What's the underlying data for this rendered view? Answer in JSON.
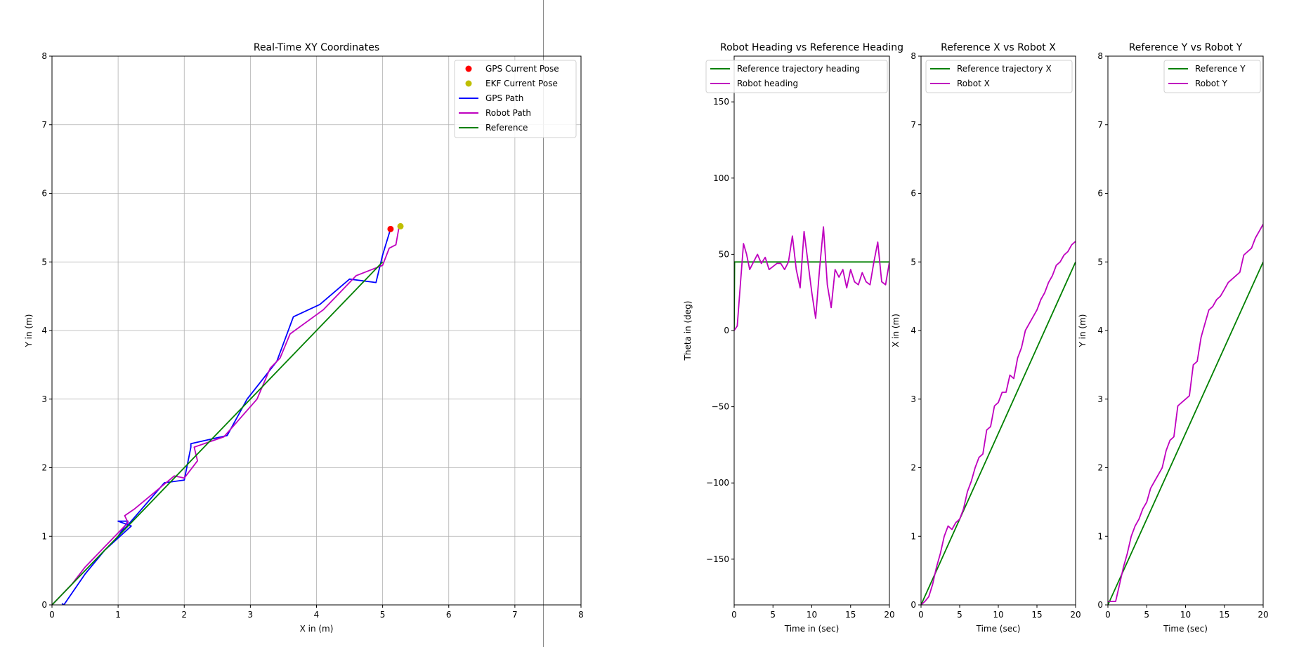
{
  "colors": {
    "gps_point": "#ff0000",
    "ekf_point": "#bfbf00",
    "gps_path": "#0000ff",
    "robot_path": "#bf00bf",
    "reference": "#008000"
  },
  "chart_data": [
    {
      "type": "line",
      "title": "Real-Time XY Coordinates",
      "xlabel": "X in (m)",
      "ylabel": "Y in (m)",
      "xlim": [
        0,
        8
      ],
      "ylim": [
        0,
        8
      ],
      "xticks": [
        "0",
        "1",
        "2",
        "3",
        "4",
        "5",
        "6",
        "7",
        "8"
      ],
      "yticks": [
        "0",
        "1",
        "2",
        "3",
        "4",
        "5",
        "6",
        "7",
        "8"
      ],
      "grid": true,
      "legend_position": "top-right",
      "points": [
        {
          "name": "GPS Current Pose",
          "x": 5.12,
          "y": 5.48,
          "color": "#ff0000"
        },
        {
          "name": "EKF Current Pose",
          "x": 5.27,
          "y": 5.52,
          "color": "#bfbf00"
        }
      ],
      "series": [
        {
          "name": "GPS Path",
          "color": "#0000ff",
          "x": [
            0.15,
            0.18,
            0.5,
            0.8,
            1.2,
            1.0,
            1.15,
            1.0,
            1.7,
            2.0,
            2.1,
            2.1,
            2.65,
            2.95,
            3.4,
            3.65,
            4.05,
            4.5,
            4.9,
            5.0,
            5.12
          ],
          "y": [
            0.02,
            0.0,
            0.45,
            0.8,
            1.15,
            1.22,
            1.22,
            1.0,
            1.78,
            1.82,
            2.3,
            2.35,
            2.47,
            3.0,
            3.55,
            4.2,
            4.38,
            4.75,
            4.7,
            5.1,
            5.48
          ]
        },
        {
          "name": "Robot Path",
          "color": "#bf00bf",
          "x": [
            0.0,
            0.3,
            0.5,
            0.8,
            1.0,
            1.15,
            1.1,
            1.25,
            1.5,
            1.85,
            2.0,
            2.2,
            2.15,
            2.6,
            3.1,
            3.3,
            3.45,
            3.6,
            4.1,
            4.4,
            4.6,
            5.0,
            5.1,
            5.2,
            5.25
          ],
          "y": [
            0.0,
            0.3,
            0.55,
            0.85,
            1.05,
            1.2,
            1.3,
            1.4,
            1.6,
            1.88,
            1.85,
            2.1,
            2.3,
            2.45,
            3.0,
            3.45,
            3.6,
            3.95,
            4.3,
            4.6,
            4.8,
            4.95,
            5.2,
            5.25,
            5.52
          ]
        },
        {
          "name": "Reference",
          "color": "#008000",
          "x": [
            0,
            5
          ],
          "y": [
            0,
            5
          ]
        }
      ]
    },
    {
      "type": "line",
      "title": "Robot Heading vs Reference Heading",
      "xlabel": "Time in (sec)",
      "ylabel": "Theta in (deg)",
      "xlim": [
        0,
        20
      ],
      "ylim": [
        -180,
        180
      ],
      "xticks": [
        "0",
        "5",
        "10",
        "15",
        "20"
      ],
      "yticks": [
        "−150",
        "−100",
        "−50",
        "0",
        "50",
        "100",
        "150"
      ],
      "ytick_values": [
        -150,
        -100,
        -50,
        0,
        50,
        100,
        150
      ],
      "legend_position": "top-left",
      "series": [
        {
          "name": "Reference trajectory heading",
          "color": "#008000",
          "x": [
            0,
            0.05,
            20
          ],
          "y": [
            0,
            45,
            45
          ]
        },
        {
          "name": "Robot heading",
          "color": "#bf00bf",
          "x": [
            0,
            0.4,
            0.8,
            1.2,
            1.6,
            2.0,
            2.5,
            3.0,
            3.5,
            4.0,
            4.5,
            5.0,
            5.5,
            6.0,
            6.5,
            7.0,
            7.5,
            8.0,
            8.5,
            9.0,
            9.5,
            10.0,
            10.5,
            11.0,
            11.5,
            12.0,
            12.5,
            13.0,
            13.5,
            14.0,
            14.5,
            15.0,
            15.5,
            16.0,
            16.5,
            17.0,
            17.5,
            18.0,
            18.5,
            19.0,
            19.5,
            20.0
          ],
          "y": [
            0,
            3,
            30,
            57,
            50,
            40,
            45,
            50,
            44,
            48,
            40,
            42,
            44,
            44,
            40,
            45,
            62,
            40,
            28,
            65,
            45,
            25,
            8,
            40,
            68,
            30,
            15,
            40,
            35,
            40,
            28,
            40,
            32,
            30,
            38,
            32,
            30,
            45,
            58,
            32,
            30,
            45
          ]
        }
      ]
    },
    {
      "type": "line",
      "title": "Reference X vs Robot X",
      "xlabel": "Time (sec)",
      "ylabel": "X in (m)",
      "xlim": [
        0,
        20
      ],
      "ylim": [
        0,
        8
      ],
      "xticks": [
        "0",
        "5",
        "10",
        "15",
        "20"
      ],
      "yticks": [
        "0",
        "1",
        "2",
        "3",
        "4",
        "5",
        "6",
        "7",
        "8"
      ],
      "legend_position": "top-left",
      "series": [
        {
          "name": "Reference trajectory X",
          "color": "#008000",
          "x": [
            0,
            20
          ],
          "y": [
            0,
            5
          ]
        },
        {
          "name": "Robot X",
          "color": "#bf00bf",
          "x": [
            0,
            0.5,
            1,
            1.5,
            2,
            2.5,
            3,
            3.5,
            4,
            4.5,
            5,
            5.5,
            6,
            6.5,
            7,
            7.5,
            8,
            8.5,
            9,
            9.5,
            10,
            10.5,
            11,
            11.5,
            12,
            12.5,
            13,
            13.5,
            14,
            14.5,
            15,
            15.5,
            16,
            16.5,
            17,
            17.5,
            18,
            18.5,
            19,
            19.5,
            20
          ],
          "y": [
            0,
            0.05,
            0.12,
            0.3,
            0.55,
            0.75,
            1.0,
            1.15,
            1.1,
            1.2,
            1.25,
            1.4,
            1.65,
            1.8,
            2.0,
            2.15,
            2.2,
            2.55,
            2.6,
            2.9,
            2.95,
            3.1,
            3.1,
            3.35,
            3.3,
            3.6,
            3.75,
            4.0,
            4.1,
            4.2,
            4.3,
            4.45,
            4.55,
            4.7,
            4.8,
            4.95,
            5.0,
            5.1,
            5.15,
            5.25,
            5.3
          ]
        }
      ]
    },
    {
      "type": "line",
      "title": "Reference Y vs Robot Y",
      "xlabel": "Time (sec)",
      "ylabel": "Y in (m)",
      "xlim": [
        0,
        20
      ],
      "ylim": [
        0,
        8
      ],
      "xticks": [
        "0",
        "5",
        "10",
        "15",
        "20"
      ],
      "yticks": [
        "0",
        "1",
        "2",
        "3",
        "4",
        "5",
        "6",
        "7",
        "8"
      ],
      "legend_position": "top-right",
      "series": [
        {
          "name": "Reference Y",
          "color": "#008000",
          "x": [
            0,
            20
          ],
          "y": [
            0,
            5
          ]
        },
        {
          "name": "Robot Y",
          "color": "#bf00bf",
          "x": [
            0,
            0.5,
            1,
            1.5,
            2,
            2.5,
            3,
            3.5,
            4,
            4.5,
            5,
            5.5,
            6,
            6.5,
            7,
            7.5,
            8,
            8.5,
            9,
            9.5,
            10,
            10.5,
            11,
            11.5,
            12,
            12.5,
            13,
            13.5,
            14,
            14.5,
            15,
            15.5,
            16,
            16.5,
            17,
            17.5,
            18,
            18.5,
            19,
            19.5,
            20
          ],
          "y": [
            0.05,
            0.05,
            0.05,
            0.3,
            0.55,
            0.75,
            1.0,
            1.15,
            1.25,
            1.4,
            1.5,
            1.7,
            1.8,
            1.9,
            2.0,
            2.25,
            2.4,
            2.45,
            2.9,
            2.95,
            3.0,
            3.05,
            3.5,
            3.55,
            3.9,
            4.1,
            4.3,
            4.35,
            4.45,
            4.5,
            4.6,
            4.7,
            4.75,
            4.8,
            4.85,
            5.1,
            5.15,
            5.2,
            5.35,
            5.45,
            5.55
          ]
        }
      ]
    }
  ]
}
